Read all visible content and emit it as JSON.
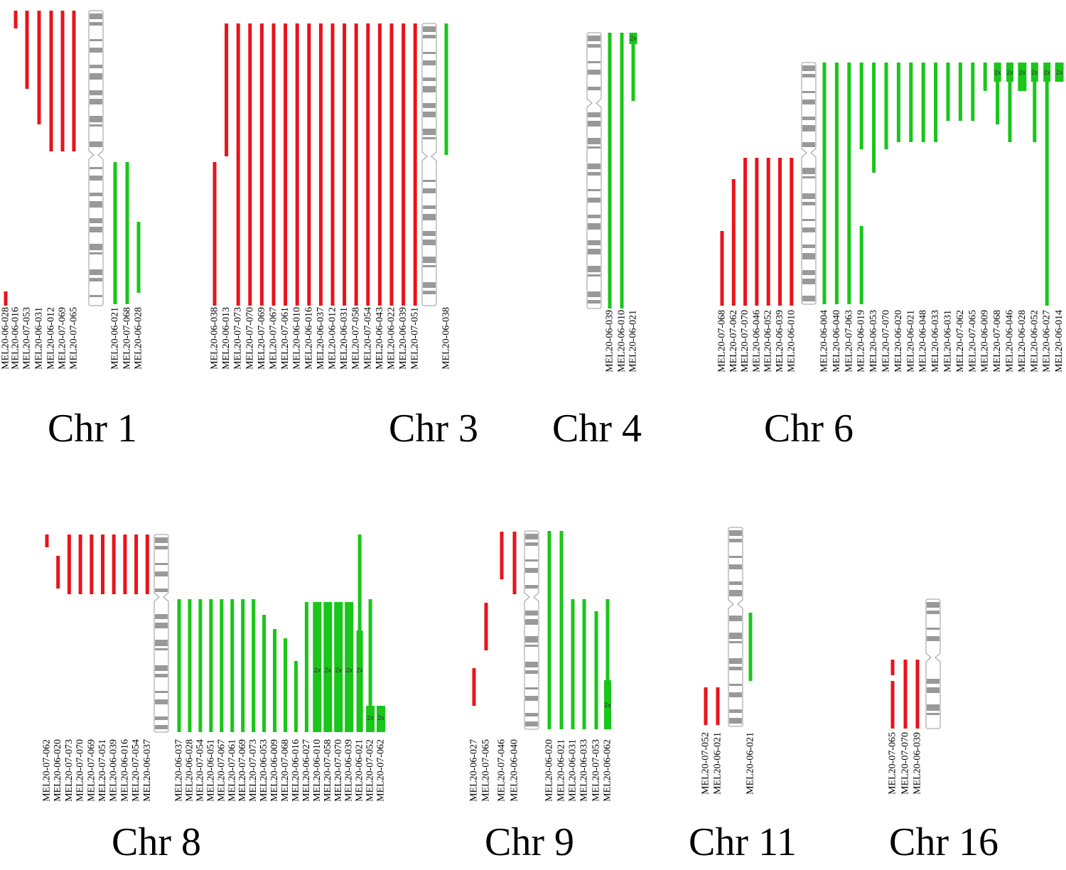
{
  "copy_number_label": "2x",
  "panels": [
    {
      "title": "Chr 1",
      "losses": [
        "MEL20-06-028",
        "MEL20-06-016",
        "MEL20-07-053",
        "MEL20-06-031",
        "MEL20-06-012",
        "MEL20-07-069",
        "MEL20-07-065"
      ],
      "gains": [
        "MEL20-06-021",
        "MEL20-07-068",
        "MEL20-06-028"
      ]
    },
    {
      "title": "Chr 3",
      "losses": [
        "MEL20-06-038",
        "MEL20-06-013",
        "MEL20-07-073",
        "MEL20-07-070",
        "MEL20-07-069",
        "MEL20-07-067",
        "MEL20-07-061",
        "MEL20-06-010",
        "MEL20-06-016",
        "MEL20-06-037",
        "MEL20-06-012",
        "MEL20-06-031",
        "MEL20-07-058",
        "MEL20-07-054",
        "MEL20-06-043",
        "MEL20-06-022",
        "MEL20-06-039",
        "MEL20-07-051"
      ],
      "gains": [
        "MEL20-06-038"
      ]
    },
    {
      "title": "Chr 4",
      "losses": [],
      "gains": [
        "MEL20-06-039",
        "MEL20-06-010",
        "MEL20-06-021"
      ]
    },
    {
      "title": "Chr 6",
      "losses": [
        "MEL20-07-068",
        "MEL20-07-062",
        "MEL20-07-070",
        "MEL20-06-046",
        "MEL20-06-052",
        "MEL20-06-039",
        "MEL20-06-010"
      ],
      "gains": [
        "MEL20-06-004",
        "MEL20-06-040",
        "MEL20-07-063",
        "MEL20-06-019",
        "MEL20-06-053",
        "MEL20-07-070",
        "MEL20-06-020",
        "MEL20-06-021",
        "MEL20-06-048",
        "MEL20-06-033",
        "MEL20-06-031",
        "MEL20-07-062",
        "MEL20-07-065",
        "MEL20-06-009",
        "MEL20-07-068",
        "MEL20-06-046",
        "MEL20-06-028",
        "MEL20-06-052",
        "MEL20-06-027",
        "MEL20-06-014"
      ]
    },
    {
      "title": "Chr 8",
      "losses": [
        "MEL20-07-062",
        "MEL20-06-020",
        "MEL20-07-073",
        "MEL20-07-070",
        "MEL20-07-069",
        "MEL20-07-051",
        "MEL20-06-039",
        "MEL20-06-016",
        "MEL20-07-054",
        "MEL20-06-037"
      ],
      "gains": [
        "MEL20-06-037",
        "MEL20-06-028",
        "MEL20-07-054",
        "MEL20-06-051",
        "MEL20-07-067",
        "MEL20-07-061",
        "MEL20-07-069",
        "MEL20-07-073",
        "MEL20-06-053",
        "MEL20-06-009",
        "MEL20-07-068",
        "MEL20-06-016",
        "MEL20-06-027",
        "MEL20-06-010",
        "MEL20-07-058",
        "MEL20-07-070",
        "MEL20-06-039",
        "MEL20-06-021",
        "MEL20-07-052",
        "MEL20-07-062"
      ]
    },
    {
      "title": "Chr 9",
      "losses": [
        "MEL20-06-027",
        "MEL20-07-065",
        "MEL20-07-046",
        "MEL20-06-040"
      ],
      "gains": [
        "MEL20-06-020",
        "MEL20-06-021",
        "MEL20-06-031",
        "MEL20-06-033",
        "MEL20-07-053",
        "MEL20-06-062"
      ]
    },
    {
      "title": "Chr 11",
      "losses": [
        "MEL20-07-052",
        "MEL20-06-021"
      ],
      "gains": [
        "MEL20-06-021"
      ]
    },
    {
      "title": "Chr 16",
      "losses": [
        "MEL20-07-065",
        "MEL20-07-070",
        "MEL20-06-039"
      ],
      "gains": []
    }
  ]
}
